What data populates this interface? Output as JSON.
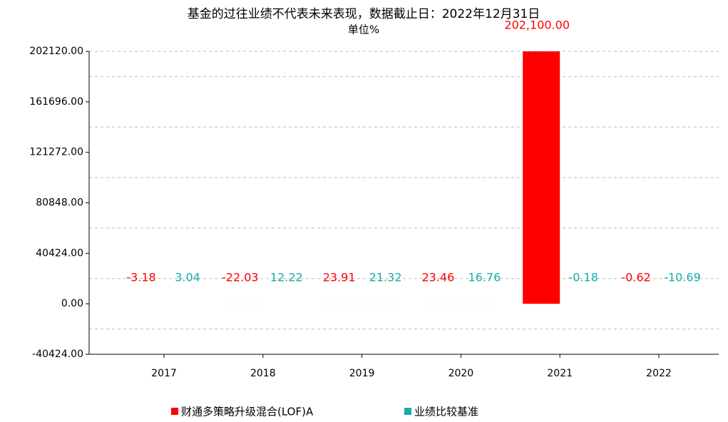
{
  "chart_data": {
    "type": "bar",
    "title": "基金的过往业绩不代表未来表现，数据截止日：2022年12月31日",
    "subtitle": "单位%",
    "categories": [
      "2017",
      "2018",
      "2019",
      "2020",
      "2021",
      "2022"
    ],
    "series": [
      {
        "name": "财通多策略升级混合(LOF)A",
        "color": "#ff0000",
        "values": [
          -3.18,
          -22.03,
          23.91,
          23.46,
          202100.0,
          -0.62
        ],
        "value_labels": [
          "-3.18",
          "-22.03",
          "23.91",
          "23.46",
          "202,100.00",
          "-0.62"
        ]
      },
      {
        "name": "业绩比较基准",
        "color": "#1aabab",
        "values": [
          3.04,
          12.22,
          21.32,
          16.76,
          -0.18,
          -10.69
        ]
      }
    ],
    "ylim": [
      -40424,
      202120
    ],
    "yticks": [
      {
        "value": -40424,
        "label": "-40424.00"
      },
      {
        "value": 0,
        "label": "0.00"
      },
      {
        "value": 40424,
        "label": "40424.00"
      },
      {
        "value": 80848,
        "label": "80848.00"
      },
      {
        "value": 121272,
        "label": "121272.00"
      },
      {
        "value": 161696,
        "label": "161696.00"
      },
      {
        "value": 202120,
        "label": "202120.00"
      }
    ],
    "grid": true
  }
}
